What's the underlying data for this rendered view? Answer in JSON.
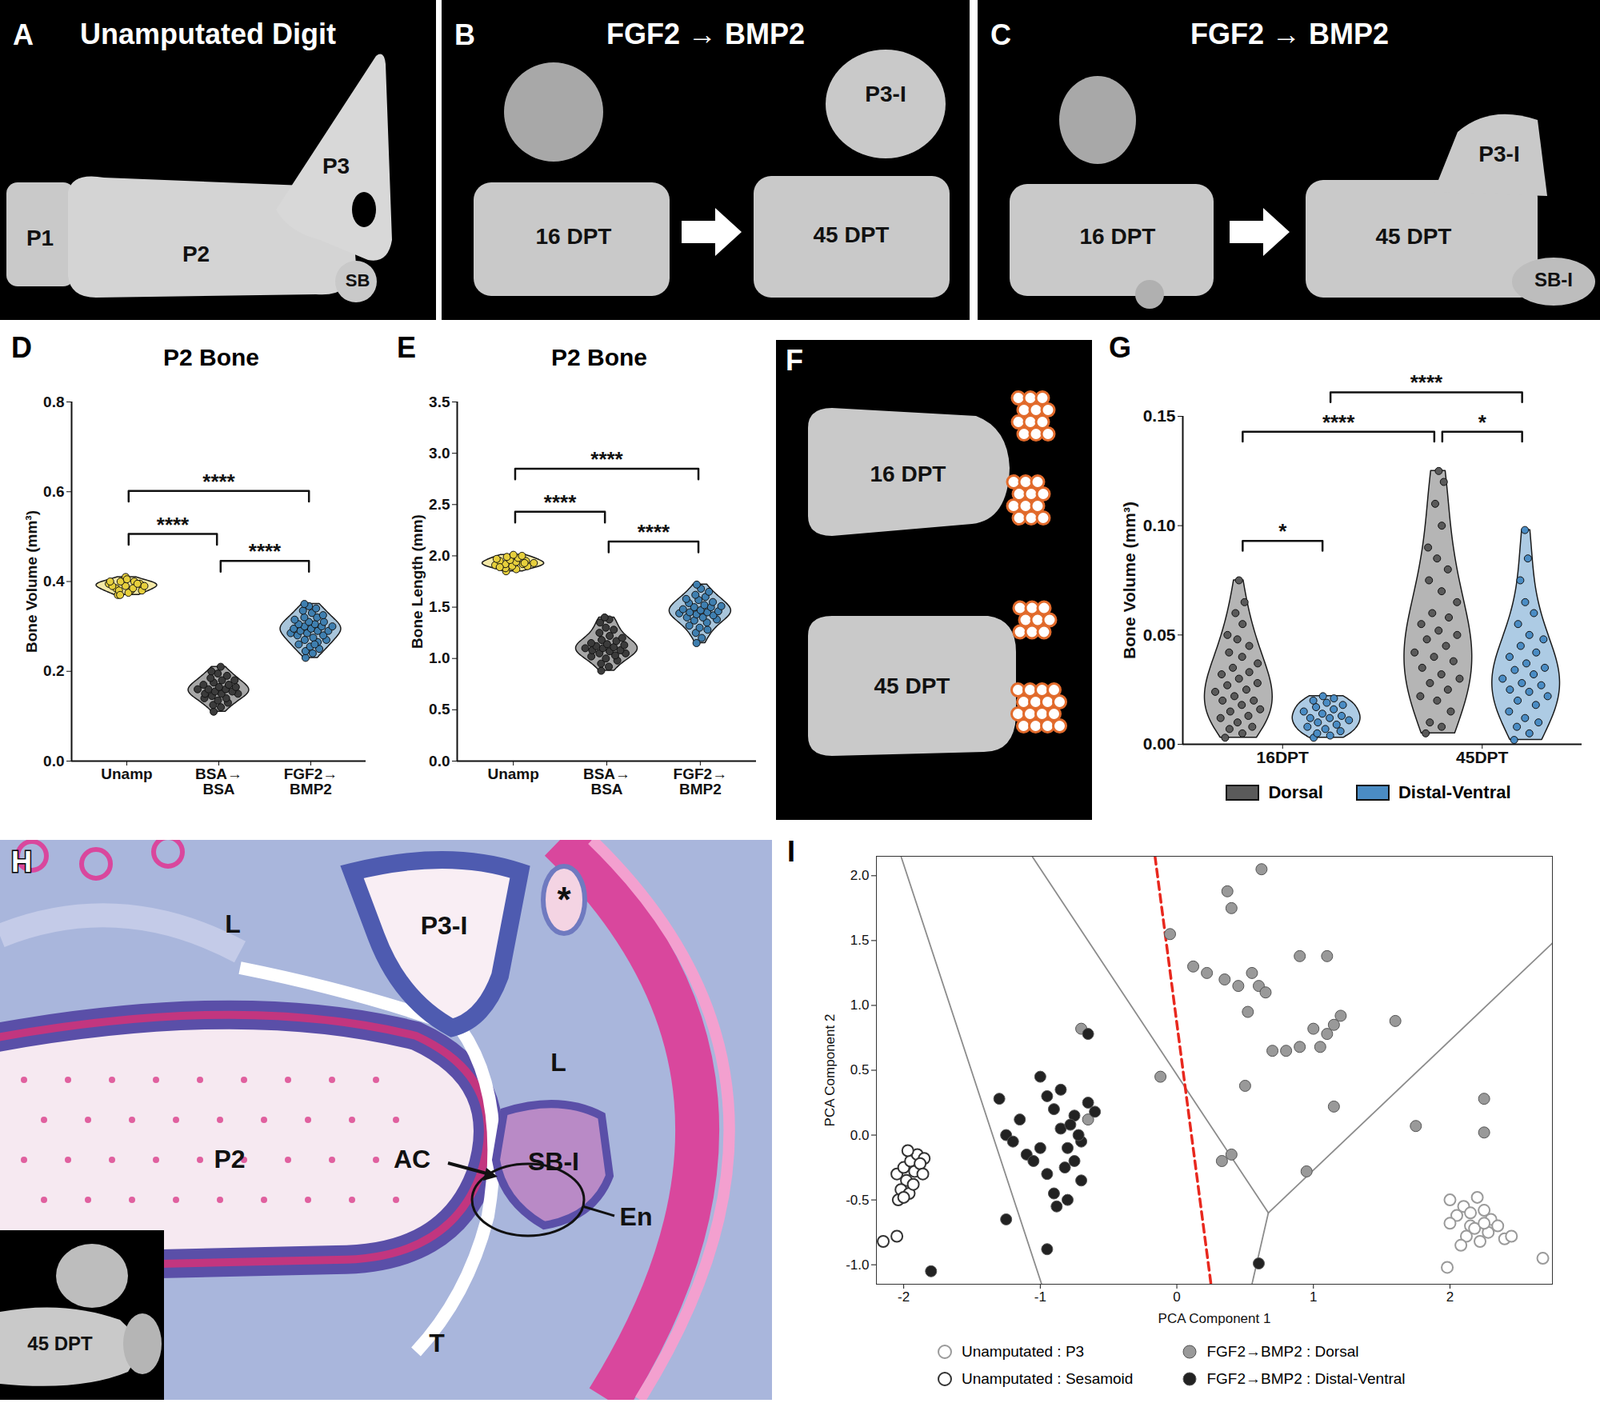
{
  "chart_data": [
    {
      "panel_label": "D",
      "type": "violin",
      "title": "P2 Bone",
      "y_label": "Bone Volume (mm³)",
      "categories": [
        "Unamp",
        "BSA→\nBSA",
        "FGF2→\nBMP2"
      ],
      "colors": [
        "#e6cf3c",
        "#3b3b3b",
        "#3f7fb0"
      ],
      "values": [
        [
          0.37,
          0.38,
          0.385,
          0.39,
          0.39,
          0.395,
          0.4,
          0.4,
          0.38,
          0.375,
          0.39,
          0.395,
          0.41,
          0.4,
          0.385,
          0.38,
          0.39,
          0.405,
          0.37,
          0.395
        ],
        [
          0.11,
          0.12,
          0.125,
          0.13,
          0.135,
          0.14,
          0.14,
          0.145,
          0.15,
          0.15,
          0.15,
          0.155,
          0.155,
          0.16,
          0.16,
          0.16,
          0.165,
          0.165,
          0.17,
          0.17,
          0.175,
          0.18,
          0.18,
          0.185,
          0.19,
          0.195,
          0.2,
          0.21
        ],
        [
          0.23,
          0.24,
          0.245,
          0.25,
          0.255,
          0.26,
          0.265,
          0.27,
          0.27,
          0.275,
          0.28,
          0.28,
          0.285,
          0.285,
          0.29,
          0.29,
          0.29,
          0.295,
          0.295,
          0.3,
          0.3,
          0.3,
          0.305,
          0.305,
          0.31,
          0.31,
          0.315,
          0.32,
          0.32,
          0.325,
          0.33,
          0.335,
          0.34,
          0.345,
          0.35,
          0.26
        ]
      ],
      "ylim": [
        0,
        0.8
      ],
      "yticks": [
        {
          "value": 0,
          "label": "0.0"
        },
        0.2,
        0.4,
        0.6,
        0.8
      ],
      "comparisons": [
        {
          "from": "Unamp",
          "to": "BSA→\nBSA",
          "label": "****"
        },
        {
          "from": "BSA→\nBSA",
          "to": "FGF2→\nBMP2",
          "label": "****"
        },
        {
          "from": "Unamp",
          "to": "FGF2→\nBMP2",
          "label": "****"
        }
      ]
    },
    {
      "panel_label": "E",
      "type": "violin",
      "title": "P2 Bone",
      "y_label": "Bone Length (mm)",
      "categories": [
        "Unamp",
        "BSA→\nBSA",
        "FGF2→\nBMP2"
      ],
      "colors": [
        "#e6cf3c",
        "#3b3b3b",
        "#3f7fb0"
      ],
      "values": [
        [
          1.85,
          1.87,
          1.88,
          1.9,
          1.9,
          1.91,
          1.92,
          1.92,
          1.93,
          1.94,
          1.95,
          1.95,
          1.96,
          1.97,
          1.98,
          1.99,
          2.0,
          2.01,
          1.89,
          1.93
        ],
        [
          0.88,
          0.92,
          0.95,
          0.98,
          1.0,
          1.02,
          1.03,
          1.05,
          1.05,
          1.07,
          1.08,
          1.08,
          1.1,
          1.1,
          1.11,
          1.12,
          1.13,
          1.14,
          1.15,
          1.17,
          1.18,
          1.2,
          1.22,
          1.25,
          1.28,
          1.3,
          1.35,
          1.38,
          1.4
        ],
        [
          1.15,
          1.2,
          1.25,
          1.28,
          1.3,
          1.32,
          1.35,
          1.37,
          1.38,
          1.4,
          1.4,
          1.42,
          1.43,
          1.44,
          1.45,
          1.45,
          1.46,
          1.47,
          1.48,
          1.5,
          1.5,
          1.51,
          1.52,
          1.54,
          1.55,
          1.57,
          1.58,
          1.6,
          1.62,
          1.65,
          1.68,
          1.72
        ]
      ],
      "ylim": [
        0,
        3.5
      ],
      "yticks": [
        {
          "value": 0,
          "label": "0.0"
        },
        0.5,
        {
          "value": 1,
          "label": "1.0"
        },
        1.5,
        {
          "value": 2,
          "label": "2.0"
        },
        2.5,
        {
          "value": 3,
          "label": "3.0"
        },
        3.5
      ],
      "comparisons": [
        {
          "from": "Unamp",
          "to": "BSA→\nBSA",
          "label": "****"
        },
        {
          "from": "BSA→\nBSA",
          "to": "FGF2→\nBMP2",
          "label": "****"
        },
        {
          "from": "Unamp",
          "to": "FGF2→\nBMP2",
          "label": "****"
        }
      ]
    },
    {
      "panel_label": "G",
      "type": "violin",
      "y_label": "Bone Volume (mm³)",
      "categories": [
        "16DPT",
        "45DPT"
      ],
      "series": [
        {
          "name": "Dorsal",
          "color": "#5a5a5a",
          "values": [
            [
              0.003,
              0.005,
              0.007,
              0.008,
              0.01,
              0.012,
              0.013,
              0.015,
              0.016,
              0.018,
              0.02,
              0.02,
              0.022,
              0.024,
              0.025,
              0.027,
              0.028,
              0.03,
              0.032,
              0.033,
              0.035,
              0.037,
              0.04,
              0.042,
              0.045,
              0.048,
              0.05,
              0.055,
              0.06,
              0.065,
              0.075
            ],
            [
              0.005,
              0.008,
              0.01,
              0.015,
              0.02,
              0.022,
              0.025,
              0.028,
              0.03,
              0.032,
              0.035,
              0.038,
              0.04,
              0.042,
              0.045,
              0.048,
              0.05,
              0.052,
              0.055,
              0.058,
              0.06,
              0.065,
              0.07,
              0.075,
              0.08,
              0.085,
              0.09,
              0.1,
              0.11,
              0.12,
              0.125
            ]
          ]
        },
        {
          "name": "Distal-Ventral",
          "color": "#4a8cc4",
          "values": [
            [
              0.003,
              0.004,
              0.005,
              0.006,
              0.007,
              0.008,
              0.009,
              0.01,
              0.011,
              0.012,
              0.012,
              0.013,
              0.014,
              0.015,
              0.016,
              0.017,
              0.018,
              0.019,
              0.02,
              0.021,
              0.022
            ],
            [
              0.002,
              0.005,
              0.008,
              0.01,
              0.012,
              0.015,
              0.018,
              0.02,
              0.022,
              0.024,
              0.025,
              0.027,
              0.028,
              0.03,
              0.032,
              0.034,
              0.035,
              0.037,
              0.04,
              0.042,
              0.045,
              0.048,
              0.05,
              0.055,
              0.06,
              0.065,
              0.075,
              0.085,
              0.098
            ]
          ]
        }
      ],
      "ylim": [
        0,
        0.15
      ],
      "yticks": [
        {
          "value": 0,
          "label": "0.00"
        },
        0.05,
        {
          "value": 0.1,
          "label": "0.10"
        },
        0.15
      ],
      "legend": "bottom",
      "comparisons": [
        {
          "from": [
            "16DPT",
            "Dorsal"
          ],
          "to": [
            "16DPT",
            "Distal-Ventral"
          ],
          "label": "*"
        },
        {
          "from": [
            "45DPT",
            "Dorsal"
          ],
          "to": [
            "45DPT",
            "Distal-Ventral"
          ],
          "label": "*"
        },
        {
          "from": [
            "16DPT",
            "Dorsal"
          ],
          "to": [
            "45DPT",
            "Dorsal"
          ],
          "label": "****"
        },
        {
          "from": [
            "16DPT",
            "Distal-Ventral"
          ],
          "to": [
            "45DPT",
            "Distal-Ventral"
          ],
          "label": "****"
        }
      ]
    },
    {
      "panel_label": "I",
      "type": "scatter",
      "x_label": "PCA Component 1",
      "y_label": "PCA Component 2",
      "xlim": [
        -2.2,
        2.75
      ],
      "ylim": [
        -1.15,
        2.15
      ],
      "xticks": [
        -2,
        -1,
        0,
        1,
        2
      ],
      "yticks": [
        {
          "value": -1,
          "label": "-1.0"
        },
        -0.5,
        {
          "value": 0,
          "label": "0.0"
        },
        0.5,
        {
          "value": 1,
          "label": "1.0"
        },
        1.5,
        {
          "value": 2,
          "label": "2.0"
        }
      ],
      "legend": "bottom",
      "series": [
        {
          "name": "Unamputated : P3",
          "color": "#9a9a9a",
          "marker": "circle_open",
          "x": [
            2.0,
            2.05,
            2.1,
            2.15,
            2.2,
            2.25,
            2.3,
            2.12,
            2.18,
            2.22,
            2.28,
            2.35,
            2.4,
            2.08,
            2.15,
            2.25,
            1.98,
            2.68,
            2.45,
            2.0
          ],
          "y": [
            -0.5,
            -0.62,
            -0.55,
            -0.7,
            -0.48,
            -0.58,
            -0.65,
            -0.78,
            -0.72,
            -0.82,
            -0.75,
            -0.7,
            -0.8,
            -0.85,
            -0.6,
            -0.68,
            -1.02,
            -0.95,
            -0.78,
            -0.68
          ]
        },
        {
          "name": "Unamputated : Sesamoid",
          "color": "#333333",
          "marker": "circle_open",
          "x": [
            -2.05,
            -2.0,
            -1.95,
            -1.9,
            -1.85,
            -1.98,
            -1.92,
            -2.02,
            -1.88,
            -1.96,
            -2.04,
            -1.93,
            -1.86,
            -2.0,
            -2.15,
            -2.05,
            -1.97
          ],
          "y": [
            -0.3,
            -0.25,
            -0.2,
            -0.15,
            -0.18,
            -0.35,
            -0.28,
            -0.42,
            -0.22,
            -0.45,
            -0.5,
            -0.38,
            -0.3,
            -0.48,
            -0.82,
            -0.78,
            -0.12
          ]
        },
        {
          "name": "FGF2→BMP2 : Dorsal",
          "color": "#999999",
          "marker": "circle",
          "x": [
            -0.05,
            0.12,
            0.22,
            0.37,
            0.4,
            0.62,
            0.35,
            0.45,
            0.55,
            0.6,
            0.65,
            0.52,
            0.9,
            1.1,
            1.2,
            0.9,
            1.05,
            1.1,
            1.15,
            1.0,
            0.8,
            1.6,
            1.15,
            0.5,
            0.4,
            0.33,
            0.95,
            1.75,
            2.25,
            2.25,
            -0.65,
            -0.7,
            -0.12,
            0.7
          ],
          "y": [
            1.55,
            1.3,
            1.25,
            1.88,
            1.75,
            2.05,
            1.2,
            1.15,
            1.25,
            1.15,
            1.1,
            0.95,
            1.38,
            1.38,
            0.92,
            0.68,
            0.68,
            0.78,
            0.85,
            0.82,
            0.65,
            0.88,
            0.22,
            0.38,
            -0.15,
            -0.2,
            -0.28,
            0.07,
            0.28,
            0.02,
            0.12,
            0.82,
            0.45,
            0.65
          ]
        },
        {
          "name": "FGF2→BMP2 : Distal-Ventral",
          "color": "#222222",
          "marker": "circle",
          "x": [
            -1.3,
            -1.25,
            -1.2,
            -1.15,
            -1.1,
            -1.05,
            -1.0,
            -0.95,
            -0.9,
            -0.85,
            -0.8,
            -0.75,
            -0.7,
            -0.65,
            -0.6,
            -0.95,
            -0.9,
            -0.85,
            -0.8,
            -0.75,
            -0.7,
            -1.0,
            -0.88,
            -0.78,
            -1.25,
            -0.95,
            -0.65,
            -1.8,
            0.6,
            -0.72,
            -0.82
          ],
          "y": [
            0.28,
            0.0,
            -0.05,
            0.12,
            -0.15,
            -0.2,
            0.45,
            0.3,
            0.2,
            0.05,
            -0.1,
            0.15,
            -0.05,
            0.25,
            0.18,
            -0.3,
            -0.45,
            0.35,
            -0.5,
            -0.2,
            -0.35,
            -0.1,
            -0.55,
            0.08,
            -0.65,
            -0.88,
            0.78,
            -1.05,
            -0.99,
            0.0,
            -0.25
          ]
        }
      ],
      "reference_lines": [
        {
          "x": [
            -2.02,
            -0.99
          ],
          "y": [
            2.15,
            -1.15
          ],
          "color": "#8c8c8c",
          "line_style": "solid"
        },
        {
          "x": [
            -1.06,
            0.67
          ],
          "y": [
            2.15,
            -0.6
          ],
          "color": "#8c8c8c",
          "line_style": "solid"
        },
        {
          "x": [
            0.67,
            0.55
          ],
          "y": [
            -0.6,
            -1.15
          ],
          "color": "#8c8c8c",
          "line_style": "solid"
        },
        {
          "x": [
            0.67,
            2.75
          ],
          "y": [
            -0.6,
            1.48
          ],
          "color": "#8c8c8c",
          "line_style": "solid"
        },
        {
          "x": [
            -0.16,
            0.25
          ],
          "y": [
            2.15,
            -1.15
          ],
          "color": "#e8281e",
          "line_style": "dashed"
        }
      ]
    }
  ],
  "image_panels": [
    {
      "panel_label": "A",
      "title": "Unamputated Digit",
      "labels": [
        "P1",
        "P2",
        "P3",
        "SB"
      ]
    },
    {
      "panel_label": "B",
      "title": "FGF2 → BMP2",
      "labels": [
        "16 DPT",
        "45 DPT",
        "P3-I"
      ]
    },
    {
      "panel_label": "C",
      "title": "FGF2 → BMP2",
      "labels": [
        "16 DPT",
        "45 DPT",
        "P3-I",
        "SB-I"
      ]
    },
    {
      "panel_label": "F",
      "labels": [
        "16 DPT",
        "45 DPT"
      ]
    },
    {
      "panel_label": "H",
      "labels": [
        "P3-I",
        "L",
        "*",
        "L",
        "P2",
        "AC",
        "SB-I",
        "En",
        "T",
        "45 DPT"
      ]
    }
  ]
}
